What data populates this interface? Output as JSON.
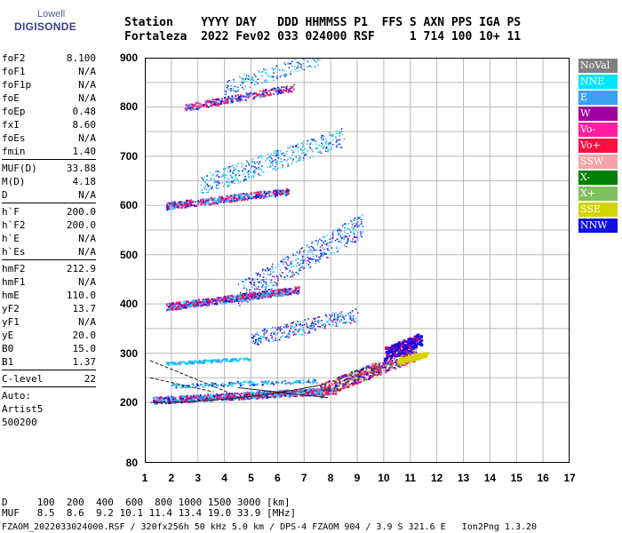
{
  "logo": {
    "company": "Lowell",
    "brand": "DIGISONDE"
  },
  "header": {
    "line1": "Station    YYYY DAY   DDD HHMMSS P1  FFS S AXN PPS IGA PS",
    "line2": "Fortaleza  2022 Fev02 033 024000 RSF     1 714 100 10+ 11"
  },
  "params": [
    {
      "group": [
        {
          "label": "foF2",
          "value": "8.100"
        },
        {
          "label": "foF1",
          "value": "N/A"
        },
        {
          "label": "foF1p",
          "value": "N/A"
        },
        {
          "label": "foE",
          "value": "N/A"
        },
        {
          "label": "foEp",
          "value": "0.48"
        },
        {
          "label": "fxI",
          "value": "8.60"
        },
        {
          "label": "foEs",
          "value": "N/A"
        },
        {
          "label": "fmin",
          "value": "1.40"
        }
      ]
    },
    {
      "group": [
        {
          "label": "MUF(D)",
          "value": "33.88"
        },
        {
          "label": "M(D)",
          "value": "4.18"
        },
        {
          "label": "D",
          "value": "N/A"
        }
      ]
    },
    {
      "group": [
        {
          "label": "h`F",
          "value": "200.0"
        },
        {
          "label": "h`F2",
          "value": "200.0"
        },
        {
          "label": "h`E",
          "value": "N/A"
        },
        {
          "label": "h`Es",
          "value": "N/A"
        }
      ]
    },
    {
      "group": [
        {
          "label": "hmF2",
          "value": "212.9"
        },
        {
          "label": "hmF1",
          "value": "N/A"
        },
        {
          "label": "hmE",
          "value": "110.0"
        },
        {
          "label": "yF2",
          "value": "13.7"
        },
        {
          "label": "yF1",
          "value": "N/A"
        },
        {
          "label": "yE",
          "value": "20.0"
        },
        {
          "label": "B0",
          "value": "15.0"
        },
        {
          "label": "B1",
          "value": "1.37"
        }
      ]
    },
    {
      "group": [
        {
          "label": "C-level",
          "value": "22"
        }
      ]
    }
  ],
  "auto": [
    "Auto:",
    "Artist5",
    "500200"
  ],
  "axes": {
    "x_ticks": [
      "1",
      "2",
      "3",
      "4",
      "5",
      "6",
      "7",
      "8",
      "9",
      "10",
      "11",
      "12",
      "13",
      "14",
      "15",
      "16",
      "17"
    ],
    "y_ticks": [
      "900",
      "800",
      "700",
      "600",
      "500",
      "400",
      "300",
      "200",
      "80"
    ]
  },
  "legend": [
    {
      "label": "NoVal",
      "color": "#808080"
    },
    {
      "label": "NNE",
      "color": "#00e5ff"
    },
    {
      "label": "E",
      "color": "#3aa0f0"
    },
    {
      "label": "W",
      "color": "#a000a0"
    },
    {
      "label": "Vo-",
      "color": "#ff1fa0"
    },
    {
      "label": "Vo+",
      "color": "#ff1040"
    },
    {
      "label": "SSW",
      "color": "#f4a4a4"
    },
    {
      "label": "X-",
      "color": "#008000"
    },
    {
      "label": "X+",
      "color": "#80c060"
    },
    {
      "label": "SSE",
      "color": "#d4d400"
    },
    {
      "label": "NNW",
      "color": "#1010e0"
    }
  ],
  "bottom": {
    "d_line": "D     100  200  400  600  800 1000 1500 3000 [km]",
    "muf_line": "MUF   8.5  8.6  9.2 10.1 11.4 13.4 19.0 33.9 [MHz]"
  },
  "footer": "FZAOM_2022033024000.RSF / 320fx256h 50 kHz 5.0 km / DPS-4 FZAOM 904 / 3.9 S 321.6 E   Ion2Png 1.3.20"
}
